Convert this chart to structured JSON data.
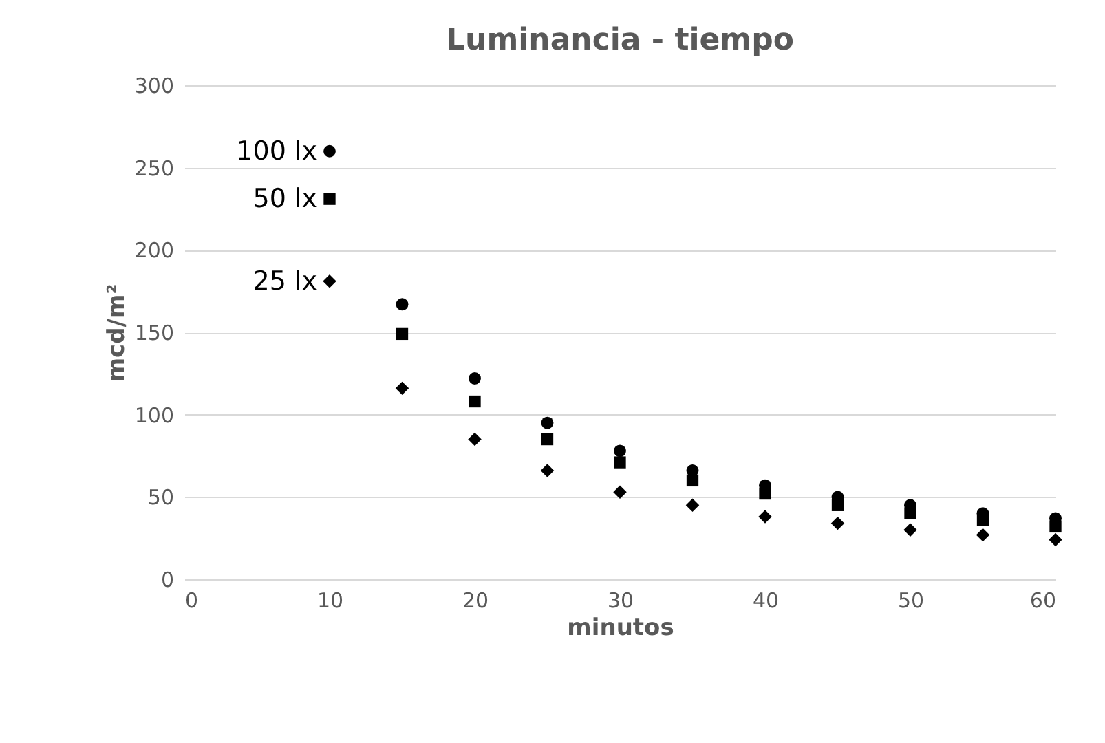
{
  "chart_data": {
    "type": "scatter",
    "title": "Luminancia - tiempo",
    "xlabel": "minutos",
    "ylabel": "mcd/m²",
    "x": [
      10,
      15,
      20,
      25,
      30,
      35,
      40,
      45,
      50,
      55,
      60
    ],
    "series": [
      {
        "name": "100 lx",
        "color": "#000000",
        "marker": "circle",
        "values": [
          260,
          167,
          122,
          95,
          78,
          66,
          57,
          50,
          45,
          40,
          37
        ]
      },
      {
        "name": "50 lx",
        "color": "#000000",
        "marker": "square",
        "values": [
          231,
          149,
          108,
          85,
          71,
          60,
          52,
          45,
          40,
          36,
          32
        ]
      },
      {
        "name": "25 lx",
        "color": "#000000",
        "marker": "diamond",
        "values": [
          181,
          116,
          85,
          66,
          53,
          45,
          38,
          34,
          30,
          27,
          24
        ]
      }
    ],
    "xlim": [
      0,
      60
    ],
    "xticks": [
      0,
      10,
      20,
      30,
      40,
      50,
      60
    ],
    "ylim": [
      0,
      300
    ],
    "yticks": [
      0,
      50,
      100,
      150,
      200,
      250,
      300
    ],
    "grid": "y"
  }
}
